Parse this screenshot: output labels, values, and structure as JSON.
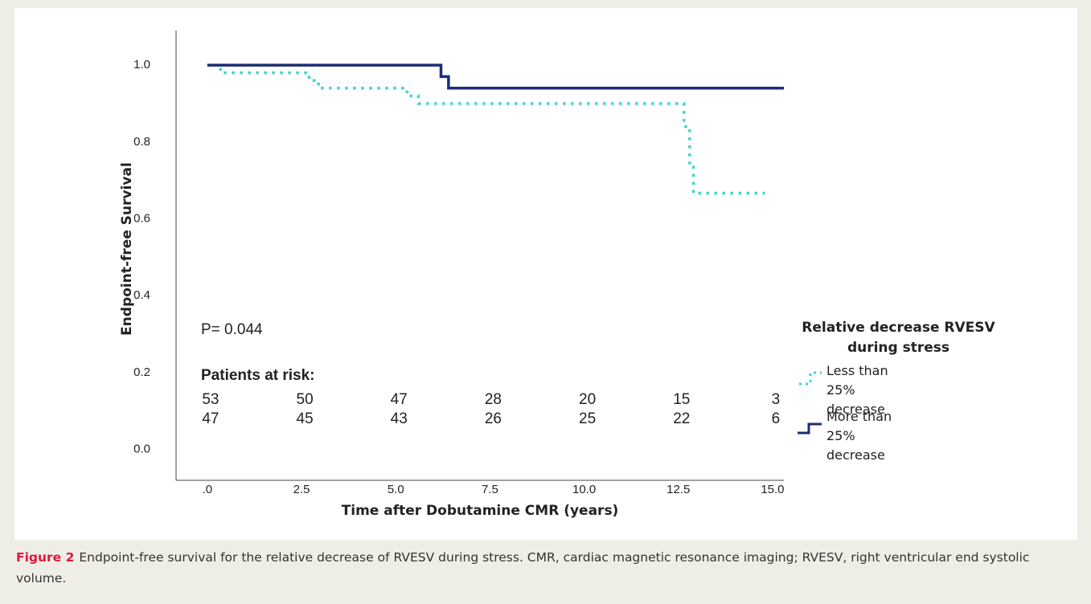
{
  "chart_data": {
    "type": "step",
    "xlabel": "Time after Dobutamine CMR (years)",
    "ylabel": "Endpoint-free Survival",
    "xlim": [
      -0.83,
      15.3
    ],
    "ylim": [
      -0.08,
      1.09
    ],
    "xticks": [
      {
        "value": 0,
        "label": ".0"
      },
      2.5,
      {
        "value": 5,
        "label": "5.0"
      },
      7.5,
      {
        "value": 10,
        "label": "10.0"
      },
      12.5,
      {
        "value": 15,
        "label": "15.0"
      }
    ],
    "yticks": [
      {
        "value": 0,
        "label": "0.0"
      },
      0.2,
      0.4,
      0.6,
      0.8,
      {
        "value": 1,
        "label": "1.0"
      }
    ],
    "grid": false,
    "annotation": "P= 0.044",
    "legend_title": "Relative decrease RVESV during stress",
    "series": [
      {
        "name": "Less than 25% decrease",
        "color": "#3fd3d3",
        "style": "dotted",
        "x": [
          0,
          0.35,
          0.35,
          2.7,
          2.7,
          2.95,
          2.95,
          5.3,
          5.3,
          5.6,
          5.6,
          12.65,
          12.65,
          12.8,
          12.8,
          12.9,
          12.9,
          14.8
        ],
        "values": [
          1,
          1,
          0.98,
          0.98,
          0.96,
          0.96,
          0.94,
          0.94,
          0.92,
          0.92,
          0.9,
          0.9,
          0.84,
          0.84,
          0.74,
          0.74,
          0.667,
          0.667
        ]
      },
      {
        "name": "More than 25% decrease",
        "color": "#1b2d78",
        "style": "solid",
        "x": [
          0,
          6.2,
          6.2,
          6.4,
          6.4,
          15.3
        ],
        "values": [
          1,
          1,
          0.97,
          0.97,
          0.94,
          0.94
        ]
      }
    ],
    "risk_table": {
      "title": "Patients at risk:",
      "rows": [
        [
          "53",
          "50",
          "47",
          "28",
          "20",
          "15",
          "3"
        ],
        [
          "47",
          "45",
          "43",
          "26",
          "25",
          "22",
          "6"
        ]
      ]
    }
  },
  "caption": {
    "label": "Figure 2",
    "text": "Endpoint-free survival for the relative decrease of RVESV during stress. CMR, cardiac magnetic resonance imaging; RVESV, right ventricular end systolic volume."
  }
}
